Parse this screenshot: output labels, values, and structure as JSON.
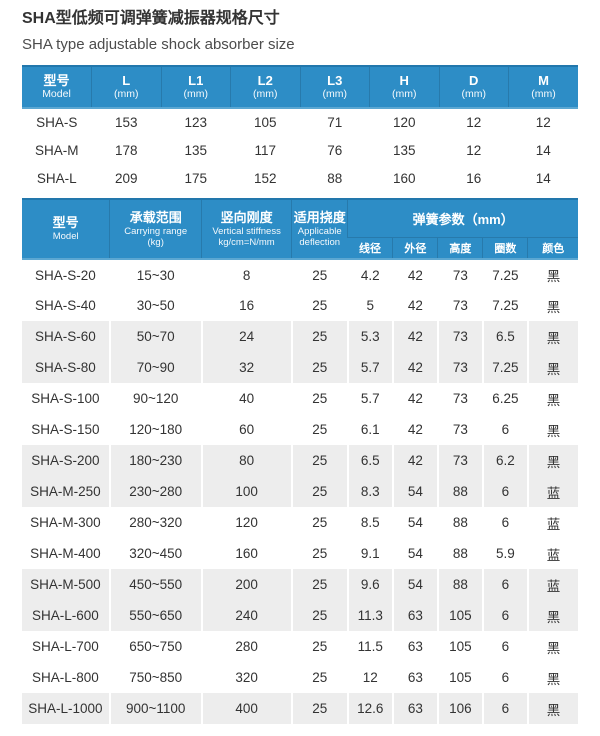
{
  "page": {
    "title_zh": "SHA型低频可调弹簧减振器规格尺寸",
    "title_en": "SHA type adjustable shock absorber size"
  },
  "colors": {
    "header_blue": "#2d8dc6",
    "header_top_border": "#2277ac",
    "header_bottom_border": "#5ba7d2",
    "stripe_gray": "#ededed",
    "body_text": "#333333"
  },
  "size_table": {
    "headers": [
      {
        "line1": "型号",
        "line2": "Model"
      },
      {
        "line1": "L",
        "line2": "(mm)"
      },
      {
        "line1": "L1",
        "line2": "(mm)"
      },
      {
        "line1": "L2",
        "line2": "(mm)"
      },
      {
        "line1": "L3",
        "line2": "(mm)"
      },
      {
        "line1": "H",
        "line2": "(mm)"
      },
      {
        "line1": "D",
        "line2": "(mm)"
      },
      {
        "line1": "M",
        "line2": "(mm)"
      }
    ],
    "rows": [
      [
        "SHA-S",
        "153",
        "123",
        "105",
        "71",
        "120",
        "12",
        "12"
      ],
      [
        "SHA-M",
        "178",
        "135",
        "117",
        "76",
        "135",
        "12",
        "14"
      ],
      [
        "SHA-L",
        "209",
        "175",
        "152",
        "88",
        "160",
        "16",
        "14"
      ]
    ]
  },
  "spec_table": {
    "col_headers": {
      "model": {
        "zh": "型号",
        "en1": "Model",
        "en2": ""
      },
      "carrying": {
        "zh": "承载范围",
        "en1": "Carrying range",
        "en2": "(kg)"
      },
      "stiffness": {
        "zh": "竖向刚度",
        "en1": "Vertical stiffness",
        "en2": "kg/cm=N/mm"
      },
      "deflection": {
        "zh": "适用挠度",
        "en1": "Applicable",
        "en2": "deflection"
      },
      "spring_group": "弹簧参数（mm）",
      "spring_sub": [
        "线径",
        "外径",
        "高度",
        "圈数",
        "颜色"
      ]
    },
    "rows": [
      {
        "cells": [
          "SHA-S-20",
          "15~30",
          "8",
          "25",
          "4.2",
          "42",
          "73",
          "7.25",
          "黑"
        ],
        "shaded": false
      },
      {
        "cells": [
          "SHA-S-40",
          "30~50",
          "16",
          "25",
          "5",
          "42",
          "73",
          "7.25",
          "黑"
        ],
        "shaded": false
      },
      {
        "cells": [
          "SHA-S-60",
          "50~70",
          "24",
          "25",
          "5.3",
          "42",
          "73",
          "6.5",
          "黑"
        ],
        "shaded": true
      },
      {
        "cells": [
          "SHA-S-80",
          "70~90",
          "32",
          "25",
          "5.7",
          "42",
          "73",
          "7.25",
          "黑"
        ],
        "shaded": true
      },
      {
        "cells": [
          "SHA-S-100",
          "90~120",
          "40",
          "25",
          "5.7",
          "42",
          "73",
          "6.25",
          "黑"
        ],
        "shaded": false
      },
      {
        "cells": [
          "SHA-S-150",
          "120~180",
          "60",
          "25",
          "6.1",
          "42",
          "73",
          "6",
          "黑"
        ],
        "shaded": false
      },
      {
        "cells": [
          "SHA-S-200",
          "180~230",
          "80",
          "25",
          "6.5",
          "42",
          "73",
          "6.2",
          "黑"
        ],
        "shaded": true
      },
      {
        "cells": [
          "SHA-M-250",
          "230~280",
          "100",
          "25",
          "8.3",
          "54",
          "88",
          "6",
          "蓝"
        ],
        "shaded": true
      },
      {
        "cells": [
          "SHA-M-300",
          "280~320",
          "120",
          "25",
          "8.5",
          "54",
          "88",
          "6",
          "蓝"
        ],
        "shaded": false
      },
      {
        "cells": [
          "SHA-M-400",
          "320~450",
          "160",
          "25",
          "9.1",
          "54",
          "88",
          "5.9",
          "蓝"
        ],
        "shaded": false
      },
      {
        "cells": [
          "SHA-M-500",
          "450~550",
          "200",
          "25",
          "9.6",
          "54",
          "88",
          "6",
          "蓝"
        ],
        "shaded": true
      },
      {
        "cells": [
          "SHA-L-600",
          "550~650",
          "240",
          "25",
          "11.3",
          "63",
          "105",
          "6",
          "黑"
        ],
        "shaded": true
      },
      {
        "cells": [
          "SHA-L-700",
          "650~750",
          "280",
          "25",
          "11.5",
          "63",
          "105",
          "6",
          "黑"
        ],
        "shaded": false
      },
      {
        "cells": [
          "SHA-L-800",
          "750~850",
          "320",
          "25",
          "12",
          "63",
          "105",
          "6",
          "黑"
        ],
        "shaded": false
      },
      {
        "cells": [
          "SHA-L-1000",
          "900~1100",
          "400",
          "25",
          "12.6",
          "63",
          "106",
          "6",
          "黑"
        ],
        "shaded": true
      }
    ]
  }
}
